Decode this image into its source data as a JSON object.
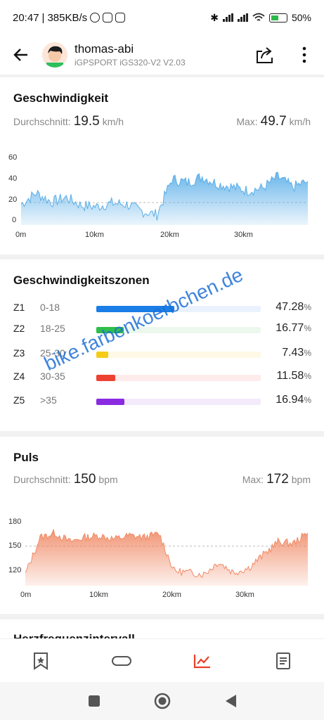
{
  "statusbar": {
    "time": "20:47",
    "net": "385KB/s",
    "battery": "50%"
  },
  "header": {
    "user": "thomas-abi",
    "device": "iGPSPORT iGS320-V2  V2.03"
  },
  "speed": {
    "title": "Geschwindigkeit",
    "avg_label": "Durchschnitt:",
    "avg_value": "19.5",
    "avg_unit": "km/h",
    "max_label": "Max:",
    "max_value": "49.7",
    "max_unit": "km/h",
    "yticks": [
      "60",
      "40",
      "20",
      "0"
    ],
    "xticks": [
      "0m",
      "10km",
      "20km",
      "30km"
    ]
  },
  "zones": {
    "title": "Geschwindigkeitszonen",
    "rows": [
      {
        "zone": "Z1",
        "range": "0-18",
        "pct": "47.28",
        "unit": "%",
        "fraction": 0.4728,
        "color": "#1a7ee6",
        "bg": "#eaf3fd"
      },
      {
        "zone": "Z2",
        "range": "18-25",
        "pct": "16.77",
        "unit": "%",
        "fraction": 0.1677,
        "color": "#2fbf4a",
        "bg": "#ecf8ee"
      },
      {
        "zone": "Z3",
        "range": "25-30",
        "pct": "7.43",
        "unit": "%",
        "fraction": 0.0743,
        "color": "#f5cc15",
        "bg": "#fdf9e6"
      },
      {
        "zone": "Z4",
        "range": "30-35",
        "pct": "11.58",
        "unit": "%",
        "fraction": 0.1158,
        "color": "#ef4131",
        "bg": "#fdeceb"
      },
      {
        "zone": "Z5",
        "range": ">35",
        "pct": "16.94",
        "unit": "%",
        "fraction": 0.1694,
        "color": "#8a2be2",
        "bg": "#f3eafc"
      }
    ]
  },
  "pulse": {
    "title": "Puls",
    "avg_label": "Durchschnitt:",
    "avg_value": "150",
    "avg_unit": "bpm",
    "max_label": "Max:",
    "max_value": "172",
    "max_unit": "bpm",
    "yticks": [
      "180",
      "150",
      "120"
    ],
    "xticks": [
      "0m",
      "10km",
      "20km",
      "30km"
    ]
  },
  "next_card_title": "Herzfrequenzintervall",
  "watermark": "bike.farbenkoerbchen.de",
  "colors": {
    "speed": "#5aaee8",
    "pulse": "#f08a66",
    "active_tab": "#e8412c"
  },
  "chart_data": [
    {
      "type": "area",
      "title": "Geschwindigkeit",
      "xlabel": "",
      "ylabel": "",
      "x": [
        0,
        2,
        4,
        6,
        8,
        10,
        12,
        14,
        16,
        18,
        20,
        22,
        24,
        26,
        28,
        30,
        32,
        34,
        36,
        38
      ],
      "values": [
        18,
        28,
        20,
        24,
        17,
        16,
        19,
        18,
        12,
        9,
        40,
        37,
        42,
        36,
        33,
        30,
        32,
        42,
        33,
        38
      ],
      "xlim": [
        0,
        38
      ],
      "ylim": [
        0,
        60
      ]
    },
    {
      "type": "area",
      "title": "Puls",
      "xlabel": "",
      "ylabel": "",
      "x": [
        0,
        2,
        4,
        6,
        8,
        10,
        12,
        14,
        16,
        18,
        20,
        22,
        24,
        26,
        28,
        30,
        32,
        34,
        36,
        38
      ],
      "values": [
        118,
        160,
        165,
        155,
        160,
        162,
        158,
        162,
        160,
        164,
        122,
        120,
        118,
        132,
        120,
        125,
        140,
        155,
        153,
        165
      ],
      "xlim": [
        0,
        38
      ],
      "ylim": [
        105,
        185
      ]
    }
  ]
}
